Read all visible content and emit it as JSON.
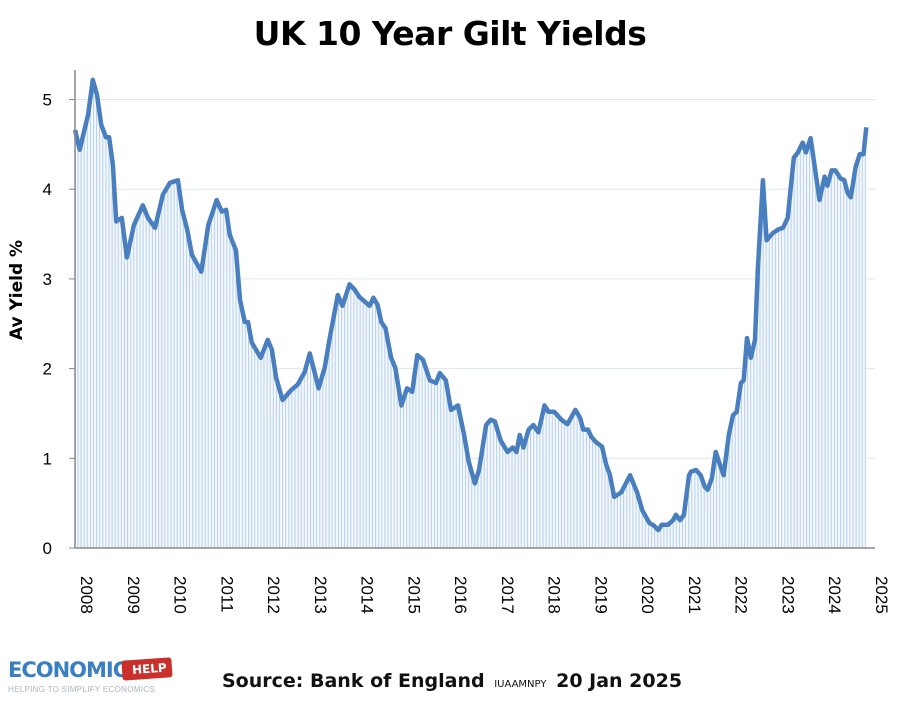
{
  "chart_data": {
    "type": "area",
    "title": "UK 10 Year Gilt Yields",
    "xlabel": "",
    "ylabel": "Av Yield %",
    "xlim": [
      2008,
      2025
    ],
    "ylim": [
      0,
      5.5
    ],
    "yticks": [
      "0",
      "1",
      "2",
      "3",
      "4",
      "5"
    ],
    "xticks": [
      "2008",
      "2009",
      "2010",
      "2011",
      "2012",
      "2013",
      "2014",
      "2015",
      "2016",
      "2017",
      "2018",
      "2019",
      "2020",
      "2021",
      "2022",
      "2023",
      "2024",
      "2025"
    ],
    "grid": true,
    "line_color": "#4a7fbf",
    "fill_color": "#c9dcef",
    "series": [
      {
        "x": [
          2008.0,
          2008.1,
          2008.28,
          2008.38,
          2008.47,
          2008.56,
          2008.66,
          2008.73,
          2008.81,
          2008.88,
          2009.0,
          2009.11,
          2009.26,
          2009.45,
          2009.56,
          2009.71,
          2009.88,
          2010.03,
          2010.2,
          2010.29,
          2010.4,
          2010.5,
          2010.7,
          2010.85,
          2011.03,
          2011.14,
          2011.23,
          2011.31,
          2011.44,
          2011.53,
          2011.63,
          2011.7,
          2011.78,
          2011.97,
          2012.12,
          2012.21,
          2012.3,
          2012.44,
          2012.62,
          2012.76,
          2012.91,
          2013.02,
          2013.21,
          2013.34,
          2013.44,
          2013.62,
          2013.72,
          2013.87,
          2013.98,
          2014.08,
          2014.3,
          2014.38,
          2014.47,
          2014.55,
          2014.64,
          2014.76,
          2014.85,
          2014.98,
          2015.1,
          2015.21,
          2015.32,
          2015.44,
          2015.59,
          2015.72,
          2015.8,
          2015.93,
          2016.04,
          2016.19,
          2016.32,
          2016.42,
          2016.55,
          2016.64,
          2016.79,
          2016.89,
          2016.98,
          2017.1,
          2017.25,
          2017.36,
          2017.44,
          2017.51,
          2017.59,
          2017.7,
          2017.8,
          2017.91,
          2018.04,
          2018.12,
          2018.25,
          2018.4,
          2018.53,
          2018.7,
          2018.8,
          2018.87,
          2018.97,
          2019.04,
          2019.14,
          2019.27,
          2019.36,
          2019.44,
          2019.53,
          2019.68,
          2019.87,
          2020.02,
          2020.13,
          2020.28,
          2020.38,
          2020.47,
          2020.55,
          2020.68,
          2020.79,
          2020.85,
          2020.94,
          2021.02,
          2021.13,
          2021.17,
          2021.28,
          2021.38,
          2021.47,
          2021.53,
          2021.62,
          2021.7,
          2021.79,
          2021.87,
          2021.98,
          2022.07,
          2022.15,
          2022.24,
          2022.3,
          2022.37,
          2022.45,
          2022.54,
          2022.6,
          2022.71,
          2022.79,
          2022.92,
          2023.03,
          2023.14,
          2023.24,
          2023.37,
          2023.46,
          2023.56,
          2023.63,
          2023.73,
          2023.92,
          2024.03,
          2024.09,
          2024.18,
          2024.26,
          2024.37,
          2024.45,
          2024.52,
          2024.59,
          2024.69,
          2024.78,
          2024.86,
          2024.92
        ],
        "y": [
          4.66,
          4.44,
          4.83,
          5.22,
          5.05,
          4.72,
          4.58,
          4.58,
          4.27,
          3.64,
          3.68,
          3.24,
          3.6,
          3.82,
          3.68,
          3.57,
          3.94,
          4.07,
          4.1,
          3.77,
          3.55,
          3.27,
          3.08,
          3.6,
          3.88,
          3.75,
          3.77,
          3.49,
          3.32,
          2.76,
          2.52,
          2.52,
          2.29,
          2.12,
          2.32,
          2.21,
          1.9,
          1.65,
          1.76,
          1.82,
          1.96,
          2.17,
          1.78,
          2.01,
          2.32,
          2.82,
          2.7,
          2.94,
          2.88,
          2.8,
          2.7,
          2.79,
          2.71,
          2.52,
          2.45,
          2.12,
          2.01,
          1.59,
          1.78,
          1.74,
          2.15,
          2.1,
          1.87,
          1.84,
          1.95,
          1.87,
          1.54,
          1.59,
          1.26,
          0.96,
          0.72,
          0.87,
          1.37,
          1.43,
          1.41,
          1.2,
          1.07,
          1.12,
          1.07,
          1.26,
          1.12,
          1.32,
          1.37,
          1.29,
          1.59,
          1.52,
          1.52,
          1.43,
          1.38,
          1.54,
          1.45,
          1.32,
          1.32,
          1.24,
          1.18,
          1.13,
          0.93,
          0.81,
          0.57,
          0.62,
          0.81,
          0.62,
          0.42,
          0.28,
          0.25,
          0.2,
          0.26,
          0.26,
          0.31,
          0.37,
          0.31,
          0.37,
          0.81,
          0.85,
          0.87,
          0.81,
          0.68,
          0.65,
          0.78,
          1.07,
          0.93,
          0.81,
          1.26,
          1.48,
          1.52,
          1.84,
          1.87,
          2.34,
          2.12,
          2.32,
          3.1,
          4.1,
          3.43,
          3.51,
          3.55,
          3.57,
          3.68,
          4.35,
          4.41,
          4.52,
          4.41,
          4.57,
          3.88,
          4.14,
          4.04,
          4.21,
          4.21,
          4.12,
          4.1,
          3.96,
          3.91,
          4.24,
          4.39,
          4.39,
          4.69
        ]
      }
    ]
  },
  "footer": {
    "logo_text": "ECONOMICS",
    "logo_tag": "HELP",
    "logo_tagline": "HELPING TO SIMPLIFY ECONOMICS",
    "source_label": "Source: Bank of England",
    "source_code": "IUAAMNPY",
    "source_date": "20 Jan 2025"
  }
}
